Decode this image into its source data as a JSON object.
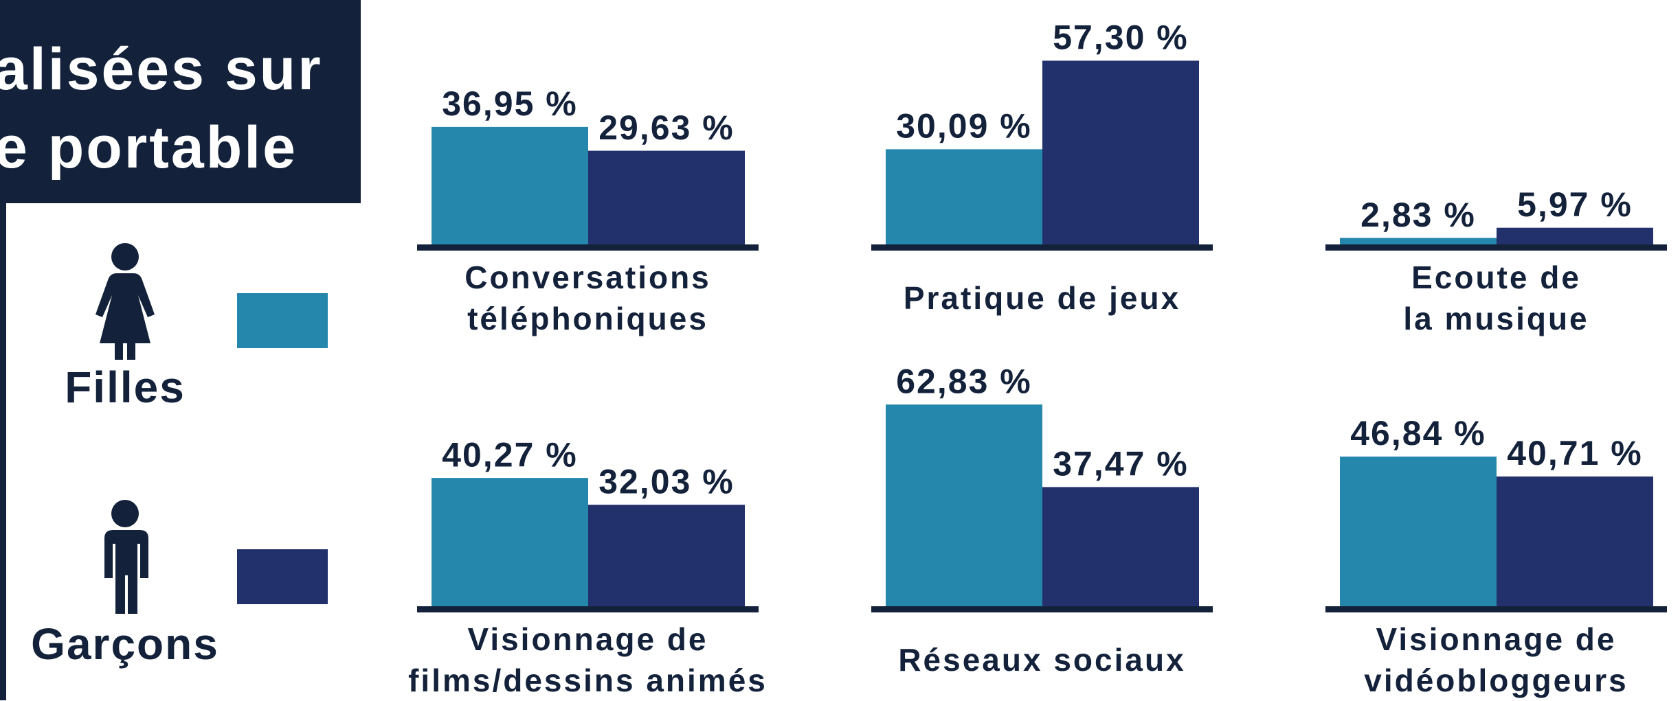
{
  "chart_data": {
    "type": "bar",
    "title": "alisées sur\ne portable",
    "categories": [
      "Conversations\ntéléphoniques",
      "Pratique de jeux",
      "Ecoute de\nla musique",
      "Visionnage de\nfilms/dessins animés",
      "Réseaux sociaux",
      "Visionnage de\nvidéobloggeurs"
    ],
    "series": [
      {
        "name": "Filles",
        "color": "#2687ad",
        "values": [
          36.95,
          30.09,
          2.83,
          40.27,
          62.83,
          46.84
        ],
        "value_labels": [
          "36,95 %",
          "30,09 %",
          "2,83 %",
          "40,27 %",
          "62,83 %",
          "46,84 %"
        ]
      },
      {
        "name": "Garçons",
        "color": "#22306b",
        "values": [
          29.63,
          57.3,
          5.97,
          32.03,
          37.47,
          40.71
        ],
        "value_labels": [
          "29,63 %",
          "57,30 %",
          "5,97 %",
          "32,03 %",
          "37,47 %",
          "40,71 %"
        ]
      }
    ]
  }
}
